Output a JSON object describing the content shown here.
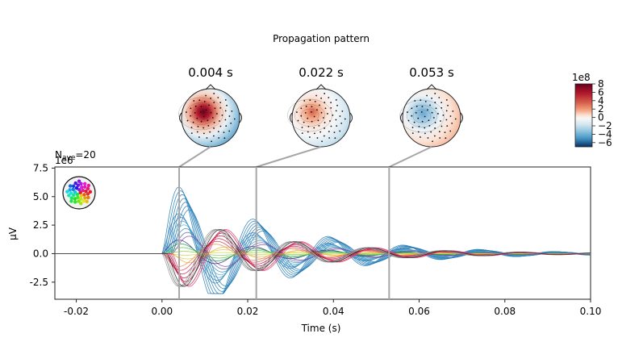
{
  "chart_data": {
    "type": "line",
    "title": "Propagation pattern",
    "nave_label": "N",
    "nave_sub": "ave",
    "nave_value": "=20",
    "y_exponent": "1e6",
    "xlabel": "Time (s)",
    "ylabel": "µV",
    "xlim": [
      -0.025,
      0.1
    ],
    "ylim": [
      -4.0,
      7.6
    ],
    "xticks": [
      "-0.02",
      "0.00",
      "0.02",
      "0.04",
      "0.06",
      "0.08",
      "0.10"
    ],
    "yticks": [
      "-2.5",
      "0.0",
      "2.5",
      "5.0",
      "7.5"
    ],
    "topomap_times": [
      0.004,
      0.022,
      0.053
    ],
    "topomap_titles": [
      "0.004 s",
      "0.022 s",
      "0.053 s"
    ],
    "colorbar": {
      "exponent": "1e8",
      "ticks": [
        "8",
        "6",
        "4",
        "2",
        "0",
        "−2",
        "−4",
        "−6"
      ],
      "range": [
        -7,
        8
      ]
    },
    "series_summary": {
      "description": "Evoked channel butterfly traces (colored by sensor position)",
      "max_positive_peak": 7.1,
      "max_negative_peak": -3.5,
      "peak_times": [
        0.004,
        0.011,
        0.022,
        0.029,
        0.038,
        0.046,
        0.053,
        0.062,
        0.07
      ]
    }
  }
}
